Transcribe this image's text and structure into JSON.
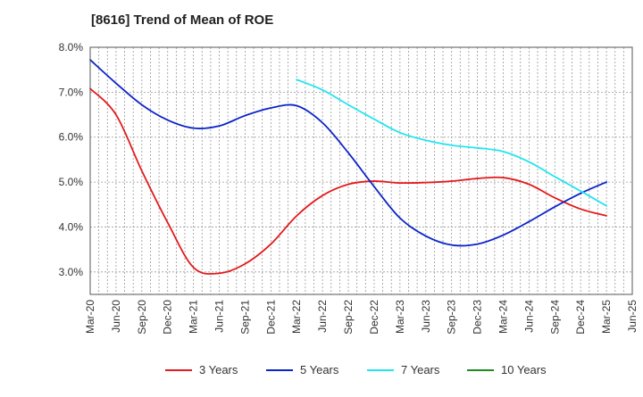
{
  "chart_data": {
    "type": "line",
    "title": "[8616]  Trend of Mean of ROE",
    "xlabel": "",
    "ylabel": "",
    "ylim": [
      2.5,
      8.0
    ],
    "yticks": [
      3.0,
      4.0,
      5.0,
      6.0,
      7.0,
      8.0
    ],
    "ytick_labels": [
      "3.0%",
      "4.0%",
      "5.0%",
      "6.0%",
      "7.0%",
      "8.0%"
    ],
    "x_categories": [
      "Mar-20",
      "Jun-20",
      "Sep-20",
      "Dec-20",
      "Mar-21",
      "Jun-21",
      "Sep-21",
      "Dec-21",
      "Mar-22",
      "Jun-22",
      "Sep-22",
      "Dec-22",
      "Mar-23",
      "Jun-23",
      "Sep-23",
      "Dec-23",
      "Mar-24",
      "Jun-24",
      "Sep-24",
      "Dec-24",
      "Mar-25",
      "Jun-25"
    ],
    "grid": true,
    "legend_position": "bottom",
    "colors": {
      "3 Years": "#e31a1c",
      "5 Years": "#0b24c8",
      "7 Years": "#22e5ef",
      "10 Years": "#1f8a1f",
      "grid": "#999999",
      "axis": "#555555"
    },
    "series": [
      {
        "name": "3 Years",
        "points": [
          [
            "Mar-20",
            7.08
          ],
          [
            "Jun-20",
            6.5
          ],
          [
            "Sep-20",
            5.25
          ],
          [
            "Dec-20",
            4.1
          ],
          [
            "Mar-21",
            3.1
          ],
          [
            "Jun-21",
            2.97
          ],
          [
            "Sep-21",
            3.18
          ],
          [
            "Dec-21",
            3.62
          ],
          [
            "Mar-22",
            4.25
          ],
          [
            "Jun-22",
            4.7
          ],
          [
            "Sep-22",
            4.95
          ],
          [
            "Dec-22",
            5.02
          ],
          [
            "Mar-23",
            4.98
          ],
          [
            "Jun-23",
            4.99
          ],
          [
            "Sep-23",
            5.02
          ],
          [
            "Dec-23",
            5.08
          ],
          [
            "Mar-24",
            5.1
          ],
          [
            "Jun-24",
            4.95
          ],
          [
            "Sep-24",
            4.65
          ],
          [
            "Dec-24",
            4.4
          ],
          [
            "Mar-25",
            4.25
          ]
        ]
      },
      {
        "name": "5 Years",
        "points": [
          [
            "Mar-20",
            7.72
          ],
          [
            "Jun-20",
            7.2
          ],
          [
            "Sep-20",
            6.72
          ],
          [
            "Dec-20",
            6.38
          ],
          [
            "Mar-21",
            6.2
          ],
          [
            "Jun-21",
            6.25
          ],
          [
            "Sep-21",
            6.48
          ],
          [
            "Dec-21",
            6.65
          ],
          [
            "Mar-22",
            6.7
          ],
          [
            "Jun-22",
            6.32
          ],
          [
            "Sep-22",
            5.65
          ],
          [
            "Dec-22",
            4.9
          ],
          [
            "Mar-23",
            4.2
          ],
          [
            "Jun-23",
            3.8
          ],
          [
            "Sep-23",
            3.6
          ],
          [
            "Dec-23",
            3.62
          ],
          [
            "Mar-24",
            3.82
          ],
          [
            "Jun-24",
            4.12
          ],
          [
            "Sep-24",
            4.45
          ],
          [
            "Dec-24",
            4.75
          ],
          [
            "Mar-25",
            5.0
          ]
        ]
      },
      {
        "name": "7 Years",
        "points": [
          [
            "Mar-22",
            7.28
          ],
          [
            "Jun-22",
            7.05
          ],
          [
            "Sep-22",
            6.72
          ],
          [
            "Dec-22",
            6.4
          ],
          [
            "Mar-23",
            6.1
          ],
          [
            "Jun-23",
            5.93
          ],
          [
            "Sep-23",
            5.82
          ],
          [
            "Dec-23",
            5.76
          ],
          [
            "Mar-24",
            5.68
          ],
          [
            "Jun-24",
            5.45
          ],
          [
            "Sep-24",
            5.12
          ],
          [
            "Dec-24",
            4.8
          ],
          [
            "Mar-25",
            4.47
          ]
        ]
      },
      {
        "name": "10 Years",
        "points": []
      }
    ]
  }
}
